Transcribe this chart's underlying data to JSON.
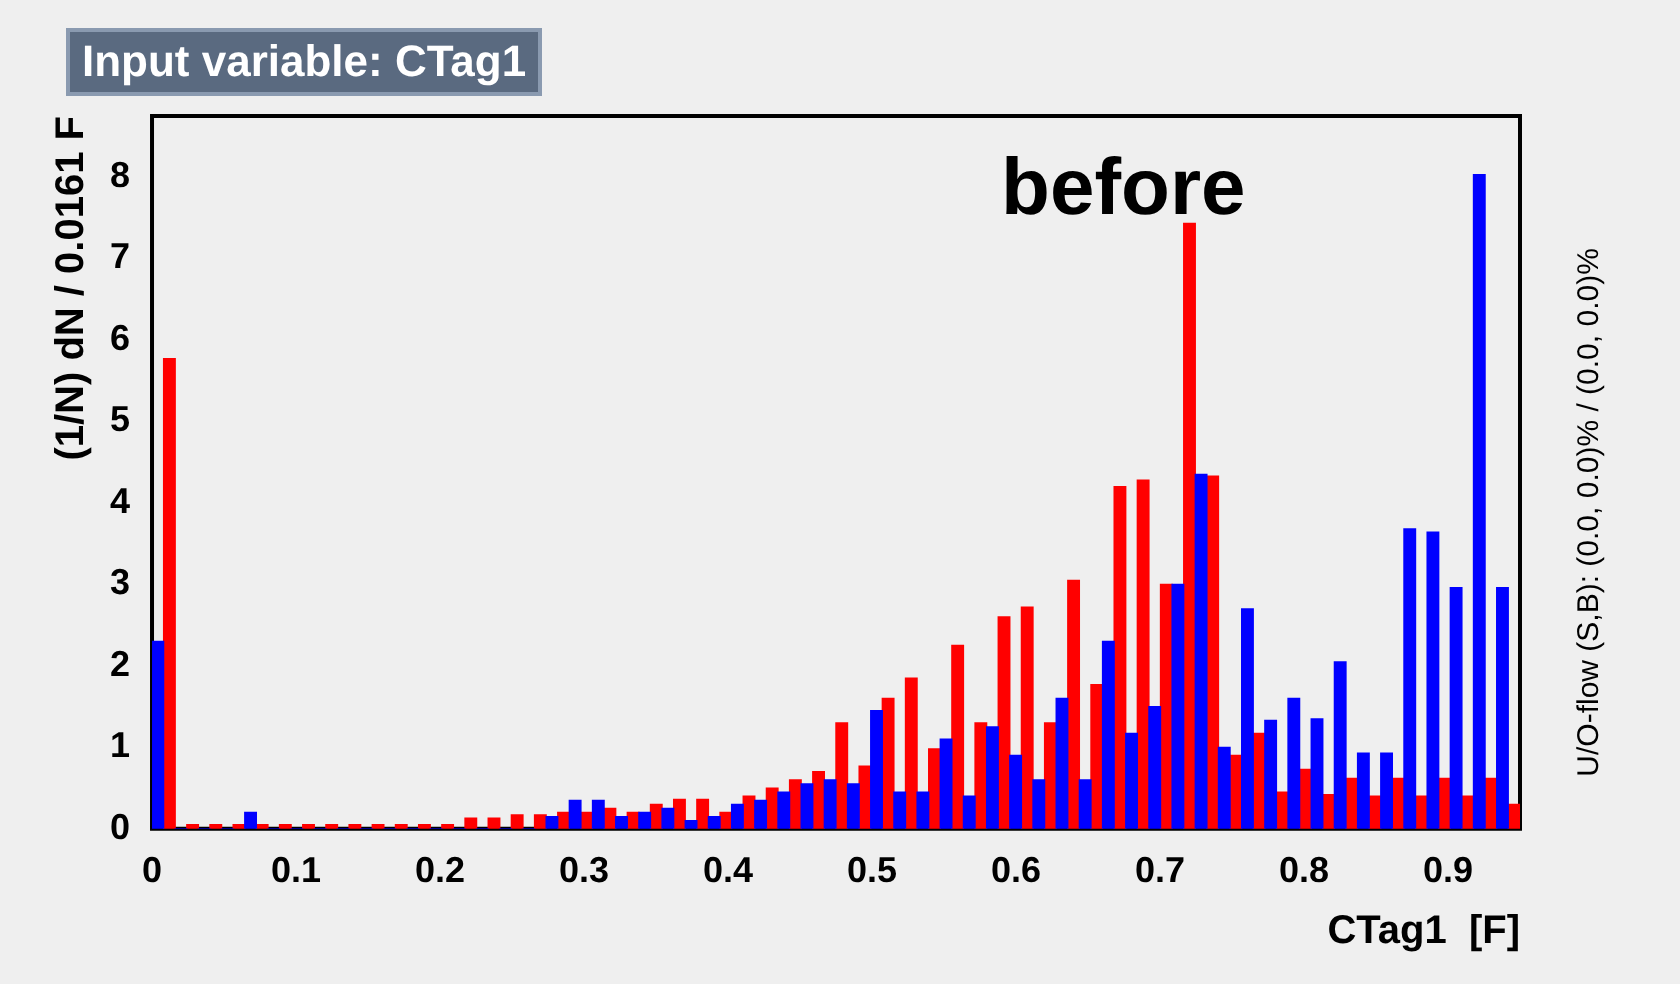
{
  "chart_data": {
    "type": "histogram",
    "title": "Input variable: CTag1",
    "xlabel": "CTag1  [F]",
    "ylabel": "(1/N) dN / 0.0161 F",
    "annotations": [
      "before",
      "U/O-flow (S,B): (0.0, 0.0)% / (0.0, 0.0)%"
    ],
    "bins": [
      0,
      0.0161,
      0.0322,
      0.0483,
      0.0644,
      0.0805,
      0.0966,
      0.1127,
      0.1288,
      0.1449,
      0.161,
      0.1771,
      0.1932,
      0.2093,
      0.2254,
      0.2415,
      0.2576,
      0.2737,
      0.2898,
      0.3059,
      0.322,
      0.3381,
      0.3542,
      0.3703,
      0.3864,
      0.4025,
      0.4186,
      0.4347,
      0.4508,
      0.4669,
      0.483,
      0.4991,
      0.5152,
      0.5313,
      0.5474,
      0.5635,
      0.5796,
      0.5957,
      0.6118,
      0.6279,
      0.644,
      0.6601,
      0.6762,
      0.6923,
      0.7084,
      0.7245,
      0.7406,
      0.7567,
      0.7728,
      0.7889,
      0.805,
      0.8211,
      0.8372,
      0.8533,
      0.8694,
      0.8855,
      0.9016,
      0.9177,
      0.9338,
      0.9499
    ],
    "series": [
      {
        "color": "#0000ff",
        "values": [
          2.3,
          0,
          0,
          0,
          0.2,
          0,
          0,
          0,
          0,
          0,
          0,
          0,
          0,
          0,
          0,
          0,
          0,
          0.15,
          0.35,
          0.35,
          0.15,
          0.2,
          0.25,
          0.1,
          0.15,
          0.3,
          0.35,
          0.45,
          0.55,
          0.6,
          0.55,
          1.45,
          0.45,
          0.45,
          1.1,
          0.4,
          1.25,
          0.9,
          0.6,
          1.6,
          0.6,
          2.3,
          1.17,
          1.5,
          3.0,
          4.35,
          1.0,
          2.7,
          1.33,
          1.6,
          1.35,
          2.05,
          0.93,
          0.93,
          3.68,
          3.64,
          2.96,
          8.03,
          2.96
        ]
      },
      {
        "color": "#ff0000",
        "values": [
          5.77,
          0.05,
          0.05,
          0.05,
          0.05,
          0.05,
          0.05,
          0.05,
          0.05,
          0.05,
          0.05,
          0.05,
          0.05,
          0.13,
          0.13,
          0.17,
          0.17,
          0.2,
          0.2,
          0.25,
          0.2,
          0.3,
          0.36,
          0.36,
          0.2,
          0.4,
          0.5,
          0.6,
          0.7,
          1.3,
          0.77,
          1.6,
          1.85,
          0.98,
          2.25,
          1.3,
          2.6,
          2.72,
          1.3,
          3.05,
          1.77,
          4.2,
          4.28,
          3.0,
          7.43,
          4.33,
          0.9,
          1.17,
          0.45,
          0.73,
          0.42,
          0.62,
          0.4,
          0.62,
          0.4,
          0.62,
          0.4,
          0.62,
          0.3
        ]
      }
    ],
    "xlim": [
      0,
      0.95
    ],
    "xticks": [
      0,
      0.1,
      0.2,
      0.3,
      0.4,
      0.5,
      0.6,
      0.7,
      0.8,
      0.9
    ],
    "ylim": [
      0,
      8.75
    ],
    "yticks": [
      0,
      1,
      2,
      3,
      4,
      5,
      6,
      7,
      8
    ],
    "grid": false,
    "legend": false
  }
}
